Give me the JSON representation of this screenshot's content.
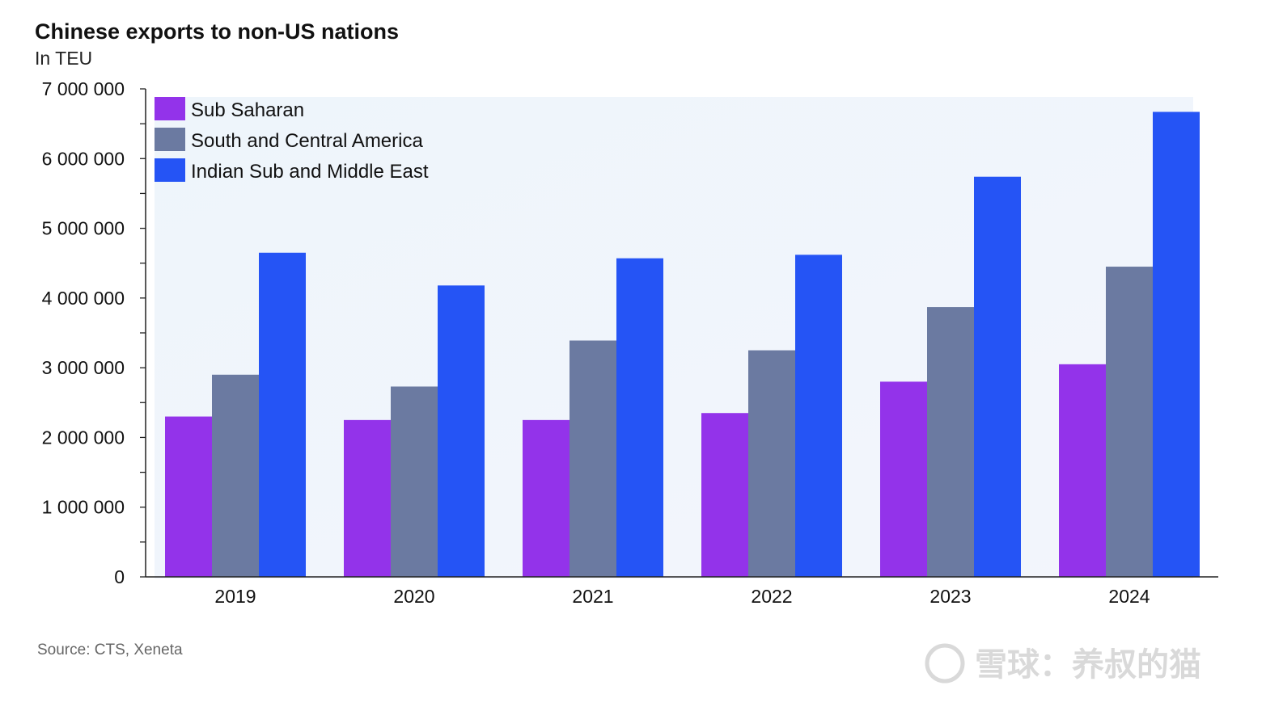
{
  "chart_data": {
    "type": "bar",
    "title": "Chinese exports to non-US nations",
    "subtitle": "In TEU",
    "categories": [
      "2019",
      "2020",
      "2021",
      "2022",
      "2023",
      "2024"
    ],
    "series": [
      {
        "name": "Sub Saharan",
        "color": "#9333ea",
        "values": [
          2300000,
          2250000,
          2250000,
          2350000,
          2800000,
          3050000
        ]
      },
      {
        "name": "South and Central America",
        "color": "#6b7aa1",
        "values": [
          2900000,
          2730000,
          3390000,
          3250000,
          3870000,
          4450000
        ]
      },
      {
        "name": "Indian Sub and Middle East",
        "color": "#2554f5",
        "values": [
          4650000,
          4180000,
          4570000,
          4620000,
          5740000,
          6670000
        ]
      }
    ],
    "ylim": [
      0,
      7000000
    ],
    "yticks": [
      0,
      1000000,
      2000000,
      3000000,
      4000000,
      5000000,
      6000000,
      7000000
    ],
    "ytick_labels": [
      "0",
      "1 000 000",
      "2 000 000",
      "3 000 000",
      "4 000 000",
      "5 000 000",
      "6 000 000",
      "7 000 000"
    ],
    "legend_position": "top-left",
    "grid": false
  },
  "source": "Source: CTS, Xeneta",
  "watermark": "雪球：养叔的猫"
}
